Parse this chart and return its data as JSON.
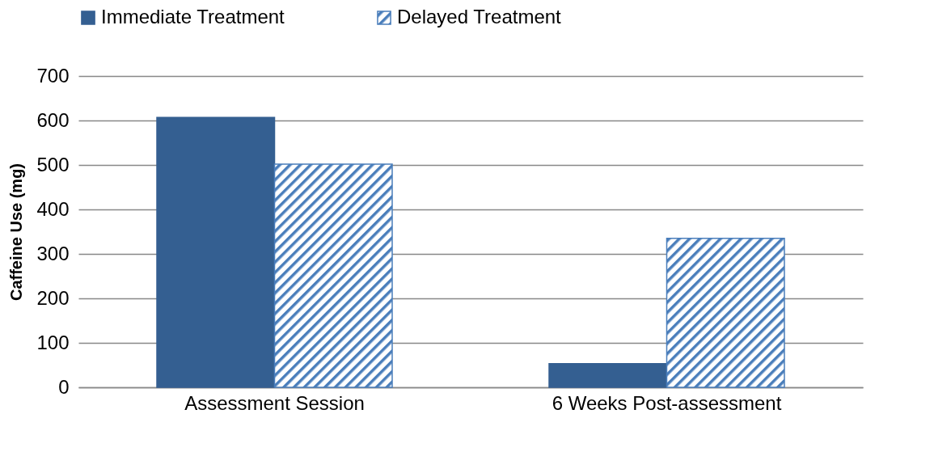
{
  "chart_data": {
    "type": "bar",
    "ylabel": "Caffeine Use (mg)",
    "categories": [
      "Assessment Session",
      "6 Weeks Post-assessment"
    ],
    "series": [
      {
        "name": "Immediate Treatment",
        "color": "#345f91",
        "values": [
          607,
          53
        ]
      },
      {
        "name": "Delayed Treatment",
        "color": "#4a7ebb",
        "values": [
          502,
          335
        ]
      }
    ],
    "ylim": [
      0,
      700
    ],
    "yticks": [
      0,
      100,
      200,
      300,
      400,
      500,
      600,
      700
    ],
    "grid": "y",
    "legend": "top"
  }
}
